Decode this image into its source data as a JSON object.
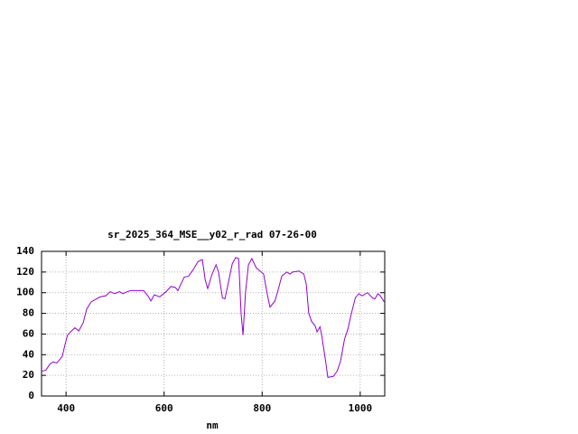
{
  "chart_data": {
    "type": "line",
    "title": "sr_2025_364_MSE__y02_r_rad 07-26-00",
    "x_label": "nm",
    "xlim": [
      350,
      1050
    ],
    "xticks": [
      400,
      600,
      800,
      1000
    ],
    "ylim": [
      0,
      140
    ],
    "yticks": [
      0,
      20,
      40,
      60,
      80,
      100,
      120,
      140
    ],
    "grid": true,
    "x": [
      350,
      359,
      367,
      374,
      381,
      392,
      398,
      403,
      411,
      418,
      426,
      435,
      442,
      451,
      462,
      470,
      481,
      490,
      499,
      509,
      516,
      525,
      532,
      540,
      558,
      567,
      573,
      580,
      591,
      604,
      614,
      623,
      628,
      641,
      650,
      659,
      669,
      678,
      684,
      689,
      697,
      706,
      711,
      719,
      724,
      729,
      739,
      746,
      752,
      757,
      761,
      766,
      772,
      779,
      788,
      798,
      803,
      811,
      816,
      826,
      831,
      840,
      850,
      857,
      862,
      875,
      885,
      890,
      895,
      901,
      908,
      912,
      918,
      921,
      929,
      934,
      945,
      953,
      960,
      968,
      975,
      982,
      990,
      997,
      1004,
      1015,
      1025,
      1030,
      1036,
      1041,
      1049
    ],
    "series": [
      {
        "color": "#9400d3",
        "values": [
          24,
          25,
          31,
          33,
          32,
          38,
          50,
          59,
          63,
          66,
          63,
          71,
          84,
          91,
          94,
          96,
          97,
          101,
          99,
          101,
          99,
          101,
          102,
          102,
          102,
          97,
          92,
          98,
          96,
          101,
          106,
          105,
          102,
          115,
          116,
          122,
          130,
          132,
          112,
          104,
          117,
          127,
          120,
          95,
          94,
          105,
          128,
          134,
          133,
          80,
          59,
          100,
          127,
          133,
          124,
          120,
          118,
          97,
          86,
          92,
          100,
          116,
          120,
          118,
          120,
          121,
          118,
          108,
          80,
          72,
          68,
          62,
          67,
          60,
          35,
          18,
          19,
          24,
          34,
          55,
          65,
          80,
          95,
          99,
          97,
          100,
          95,
          94,
          99,
          97,
          91
        ]
      }
    ]
  }
}
